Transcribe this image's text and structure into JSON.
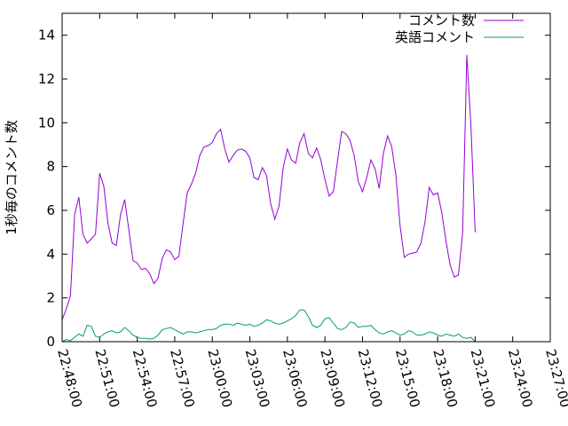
{
  "chart_data": {
    "type": "line",
    "title": "",
    "xlabel": "",
    "ylabel": "1秒毎のコメント数",
    "ylim": [
      0,
      15
    ],
    "yticks": [
      0,
      2,
      4,
      6,
      8,
      10,
      12,
      14
    ],
    "xlim": [
      "22:48:00",
      "23:27:00"
    ],
    "xticks": [
      "22:48:00",
      "22:51:00",
      "22:54:00",
      "22:57:00",
      "23:00:00",
      "23:03:00",
      "23:06:00",
      "23:09:00",
      "23:12:00",
      "23:15:00",
      "23:18:00",
      "23:21:00",
      "23:24:00",
      "23:27:00"
    ],
    "grid": false,
    "legend_position": "top-right",
    "series": [
      {
        "name": "コメント数",
        "color": "#9400d3",
        "points": [
          [
            "22:48:00",
            1.0
          ],
          [
            "22:48:20",
            1.5
          ],
          [
            "22:48:40",
            2.1
          ],
          [
            "22:49:00",
            5.8
          ],
          [
            "22:49:20",
            6.6
          ],
          [
            "22:49:40",
            4.9
          ],
          [
            "22:50:00",
            4.5
          ],
          [
            "22:50:20",
            4.7
          ],
          [
            "22:50:40",
            4.9
          ],
          [
            "22:51:00",
            7.7
          ],
          [
            "22:51:20",
            7.1
          ],
          [
            "22:51:40",
            5.4
          ],
          [
            "22:52:00",
            4.5
          ],
          [
            "22:52:20",
            4.4
          ],
          [
            "22:52:40",
            5.8
          ],
          [
            "22:53:00",
            6.5
          ],
          [
            "22:53:20",
            5.1
          ],
          [
            "22:53:40",
            3.7
          ],
          [
            "22:54:00",
            3.6
          ],
          [
            "22:54:20",
            3.3
          ],
          [
            "22:54:40",
            3.35
          ],
          [
            "22:55:00",
            3.1
          ],
          [
            "22:55:20",
            2.65
          ],
          [
            "22:55:40",
            2.9
          ],
          [
            "22:56:00",
            3.8
          ],
          [
            "22:56:20",
            4.2
          ],
          [
            "22:56:40",
            4.1
          ],
          [
            "22:57:00",
            3.75
          ],
          [
            "22:57:20",
            3.9
          ],
          [
            "22:57:40",
            5.4
          ],
          [
            "22:58:00",
            6.8
          ],
          [
            "22:58:20",
            7.2
          ],
          [
            "22:58:40",
            7.7
          ],
          [
            "22:59:00",
            8.5
          ],
          [
            "22:59:20",
            8.9
          ],
          [
            "22:59:40",
            8.95
          ],
          [
            "23:00:00",
            9.1
          ],
          [
            "23:00:20",
            9.5
          ],
          [
            "23:00:40",
            9.7
          ],
          [
            "23:01:00",
            8.8
          ],
          [
            "23:01:20",
            8.2
          ],
          [
            "23:01:40",
            8.5
          ],
          [
            "23:02:00",
            8.75
          ],
          [
            "23:02:20",
            8.8
          ],
          [
            "23:02:40",
            8.7
          ],
          [
            "23:03:00",
            8.4
          ],
          [
            "23:03:20",
            7.5
          ],
          [
            "23:03:40",
            7.4
          ],
          [
            "23:04:00",
            7.95
          ],
          [
            "23:04:20",
            7.6
          ],
          [
            "23:04:40",
            6.3
          ],
          [
            "23:05:00",
            5.6
          ],
          [
            "23:05:20",
            6.2
          ],
          [
            "23:05:40",
            7.95
          ],
          [
            "23:06:00",
            8.8
          ],
          [
            "23:06:20",
            8.3
          ],
          [
            "23:06:40",
            8.15
          ],
          [
            "23:07:00",
            9.1
          ],
          [
            "23:07:20",
            9.5
          ],
          [
            "23:07:40",
            8.6
          ],
          [
            "23:08:00",
            8.4
          ],
          [
            "23:08:20",
            8.85
          ],
          [
            "23:08:40",
            8.3
          ],
          [
            "23:09:00",
            7.4
          ],
          [
            "23:09:20",
            6.65
          ],
          [
            "23:09:40",
            6.85
          ],
          [
            "23:10:00",
            8.25
          ],
          [
            "23:10:20",
            9.6
          ],
          [
            "23:10:40",
            9.5
          ],
          [
            "23:11:00",
            9.2
          ],
          [
            "23:11:20",
            8.5
          ],
          [
            "23:11:40",
            7.3
          ],
          [
            "23:12:00",
            6.85
          ],
          [
            "23:12:20",
            7.5
          ],
          [
            "23:12:40",
            8.3
          ],
          [
            "23:13:00",
            7.9
          ],
          [
            "23:13:20",
            7.0
          ],
          [
            "23:13:40",
            8.6
          ],
          [
            "23:14:00",
            9.4
          ],
          [
            "23:14:20",
            8.9
          ],
          [
            "23:14:40",
            7.6
          ],
          [
            "23:15:00",
            5.3
          ],
          [
            "23:15:20",
            3.85
          ],
          [
            "23:15:40",
            4.0
          ],
          [
            "23:16:00",
            4.05
          ],
          [
            "23:16:20",
            4.1
          ],
          [
            "23:16:40",
            4.5
          ],
          [
            "23:17:00",
            5.5
          ],
          [
            "23:17:20",
            7.05
          ],
          [
            "23:17:40",
            6.7
          ],
          [
            "23:18:00",
            6.8
          ],
          [
            "23:18:20",
            5.9
          ],
          [
            "23:18:40",
            4.6
          ],
          [
            "23:19:00",
            3.5
          ],
          [
            "23:19:20",
            2.95
          ],
          [
            "23:19:40",
            3.05
          ],
          [
            "23:20:00",
            5.0
          ],
          [
            "23:20:20",
            13.1
          ],
          [
            "23:20:40",
            9.8
          ],
          [
            "23:21:00",
            5.0
          ]
        ]
      },
      {
        "name": "英語コメント",
        "color": "#009e73",
        "points": [
          [
            "22:48:00",
            0.0
          ],
          [
            "22:48:20",
            0.1
          ],
          [
            "22:48:40",
            0.05
          ],
          [
            "22:49:00",
            0.2
          ],
          [
            "22:49:20",
            0.35
          ],
          [
            "22:49:40",
            0.25
          ],
          [
            "22:50:00",
            0.75
          ],
          [
            "22:50:20",
            0.7
          ],
          [
            "22:50:40",
            0.25
          ],
          [
            "22:51:00",
            0.2
          ],
          [
            "22:51:20",
            0.35
          ],
          [
            "22:51:40",
            0.45
          ],
          [
            "22:52:00",
            0.5
          ],
          [
            "22:52:20",
            0.4
          ],
          [
            "22:52:40",
            0.45
          ],
          [
            "22:53:00",
            0.65
          ],
          [
            "22:53:20",
            0.5
          ],
          [
            "22:53:40",
            0.3
          ],
          [
            "22:54:00",
            0.2
          ],
          [
            "22:54:20",
            0.15
          ],
          [
            "22:54:40",
            0.15
          ],
          [
            "22:55:00",
            0.12
          ],
          [
            "22:55:20",
            0.15
          ],
          [
            "22:55:40",
            0.3
          ],
          [
            "22:56:00",
            0.55
          ],
          [
            "22:56:20",
            0.6
          ],
          [
            "22:56:40",
            0.65
          ],
          [
            "22:57:00",
            0.55
          ],
          [
            "22:57:20",
            0.45
          ],
          [
            "22:57:40",
            0.35
          ],
          [
            "22:58:00",
            0.45
          ],
          [
            "22:58:20",
            0.45
          ],
          [
            "22:58:40",
            0.4
          ],
          [
            "22:59:00",
            0.45
          ],
          [
            "22:59:20",
            0.5
          ],
          [
            "22:59:40",
            0.55
          ],
          [
            "23:00:00",
            0.55
          ],
          [
            "23:00:20",
            0.6
          ],
          [
            "23:00:40",
            0.75
          ],
          [
            "23:01:00",
            0.8
          ],
          [
            "23:01:20",
            0.8
          ],
          [
            "23:01:40",
            0.75
          ],
          [
            "23:02:00",
            0.85
          ],
          [
            "23:02:20",
            0.8
          ],
          [
            "23:02:40",
            0.75
          ],
          [
            "23:03:00",
            0.8
          ],
          [
            "23:03:20",
            0.7
          ],
          [
            "23:03:40",
            0.75
          ],
          [
            "23:04:00",
            0.85
          ],
          [
            "23:04:20",
            1.0
          ],
          [
            "23:04:40",
            0.95
          ],
          [
            "23:05:00",
            0.85
          ],
          [
            "23:05:20",
            0.8
          ],
          [
            "23:05:40",
            0.85
          ],
          [
            "23:06:00",
            0.95
          ],
          [
            "23:06:20",
            1.05
          ],
          [
            "23:06:40",
            1.2
          ],
          [
            "23:07:00",
            1.45
          ],
          [
            "23:07:20",
            1.45
          ],
          [
            "23:07:40",
            1.15
          ],
          [
            "23:08:00",
            0.75
          ],
          [
            "23:08:20",
            0.65
          ],
          [
            "23:08:40",
            0.75
          ],
          [
            "23:09:00",
            1.05
          ],
          [
            "23:09:20",
            1.1
          ],
          [
            "23:09:40",
            0.85
          ],
          [
            "23:10:00",
            0.6
          ],
          [
            "23:10:20",
            0.55
          ],
          [
            "23:10:40",
            0.65
          ],
          [
            "23:11:00",
            0.9
          ],
          [
            "23:11:20",
            0.85
          ],
          [
            "23:11:40",
            0.65
          ],
          [
            "23:12:00",
            0.7
          ],
          [
            "23:12:20",
            0.7
          ],
          [
            "23:12:40",
            0.75
          ],
          [
            "23:13:00",
            0.55
          ],
          [
            "23:13:20",
            0.4
          ],
          [
            "23:13:40",
            0.35
          ],
          [
            "23:14:00",
            0.45
          ],
          [
            "23:14:20",
            0.5
          ],
          [
            "23:14:40",
            0.4
          ],
          [
            "23:15:00",
            0.3
          ],
          [
            "23:15:20",
            0.35
          ],
          [
            "23:15:40",
            0.5
          ],
          [
            "23:16:00",
            0.45
          ],
          [
            "23:16:20",
            0.3
          ],
          [
            "23:16:40",
            0.3
          ],
          [
            "23:17:00",
            0.35
          ],
          [
            "23:17:20",
            0.45
          ],
          [
            "23:17:40",
            0.4
          ],
          [
            "23:18:00",
            0.3
          ],
          [
            "23:18:20",
            0.25
          ],
          [
            "23:18:40",
            0.35
          ],
          [
            "23:19:00",
            0.3
          ],
          [
            "23:19:20",
            0.25
          ],
          [
            "23:19:40",
            0.35
          ],
          [
            "23:20:00",
            0.2
          ],
          [
            "23:20:20",
            0.15
          ],
          [
            "23:20:40",
            0.2
          ],
          [
            "23:21:00",
            0.0
          ]
        ]
      }
    ]
  }
}
